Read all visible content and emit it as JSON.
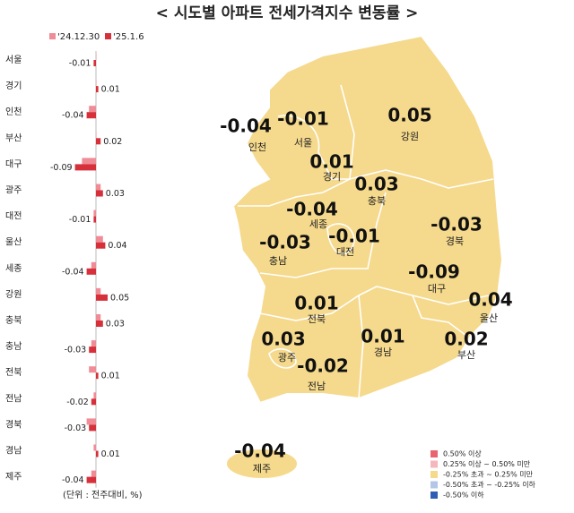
{
  "chart_data": {
    "type": "bar",
    "orientation": "horizontal",
    "title": "< 시도별 아파트 전세가격지수 변동률 >",
    "note": "(단위 : 전주대비, %)",
    "categories": [
      "서울",
      "경기",
      "인천",
      "부산",
      "대구",
      "광주",
      "대전",
      "울산",
      "세종",
      "강원",
      "충북",
      "충남",
      "전북",
      "전남",
      "경북",
      "경남",
      "제주"
    ],
    "series": [
      {
        "name": "'24.12.30",
        "color": "#f08c96",
        "values": [
          0.0,
          0.0,
          -0.03,
          0.0,
          -0.06,
          0.02,
          -0.01,
          0.03,
          -0.02,
          0.02,
          0.02,
          -0.02,
          -0.03,
          -0.01,
          -0.04,
          -0.01,
          -0.02
        ]
      },
      {
        "name": "'25.1.6",
        "color": "#d6303a",
        "values": [
          -0.01,
          0.01,
          -0.04,
          0.02,
          -0.09,
          0.03,
          -0.01,
          0.04,
          -0.04,
          0.05,
          0.03,
          -0.03,
          0.01,
          -0.02,
          -0.03,
          0.01,
          -0.04
        ]
      }
    ],
    "xlim": [
      -0.1,
      0.1
    ]
  },
  "map": {
    "region_color": "#f5d98c",
    "legend": [
      {
        "label": "0.50% 이상",
        "color": "#e8646e"
      },
      {
        "label": "0.25% 이상 ~ 0.50% 미만",
        "color": "#f5b7bd"
      },
      {
        "label": "-0.25% 초과 ~ 0.25% 미만",
        "color": "#f5d98c"
      },
      {
        "label": "-0.50% 초과 ~ -0.25% 이하",
        "color": "#b4c6e7"
      },
      {
        "label": "-0.50% 이하",
        "color": "#2f5fb3"
      }
    ]
  }
}
